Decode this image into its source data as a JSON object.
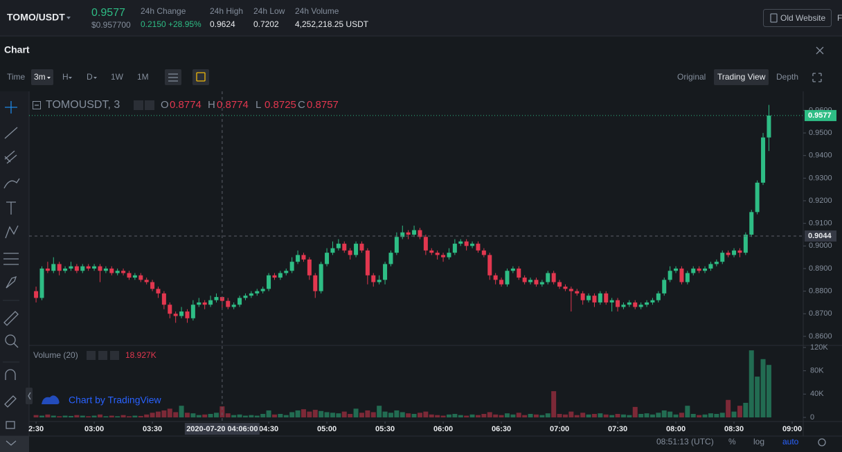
{
  "header": {
    "pair": "TOMO/USDT",
    "last_price": "0.9577",
    "last_price_usd": "$0.957700",
    "change_label": "24h Change",
    "change_value": "0.2150",
    "change_percent": "+28.95%",
    "high_label": "24h High",
    "high_value": "0.9624",
    "low_label": "24h Low",
    "low_value": "0.7202",
    "volume_label": "24h Volume",
    "volume_value": "4,252,218.25 USDT",
    "old_website": "Old Website",
    "cut_off": "F"
  },
  "panel": {
    "title": "Chart",
    "time_label": "Time",
    "intervals": [
      "3m",
      "H",
      "D",
      "1W",
      "1M"
    ],
    "views": [
      "Original",
      "Trading View",
      "Depth"
    ]
  },
  "footer": {
    "clock": "08:51:13 (UTC)",
    "percent": "%",
    "log": "log",
    "auto": "auto"
  },
  "chart_data": {
    "type": "candlestick",
    "symbol": "TOMOUSDT, 3",
    "ohlc_labels": [
      "O",
      "H",
      "L",
      "C"
    ],
    "up_color": "#2ebd85",
    "down_color": "#e2374f",
    "watermark": "Chart by TradingView",
    "candles": [
      [
        0.88,
        0.882,
        0.875,
        0.877
      ],
      [
        0.877,
        0.891,
        0.876,
        0.89
      ],
      [
        0.89,
        0.893,
        0.888,
        0.889
      ],
      [
        0.889,
        0.895,
        0.888,
        0.892
      ],
      [
        0.892,
        0.893,
        0.887,
        0.889
      ],
      [
        0.889,
        0.891,
        0.888,
        0.89
      ],
      [
        0.89,
        0.893,
        0.889,
        0.891
      ],
      [
        0.891,
        0.892,
        0.888,
        0.889
      ],
      [
        0.889,
        0.892,
        0.888,
        0.891
      ],
      [
        0.891,
        0.892,
        0.889,
        0.89
      ],
      [
        0.89,
        0.892,
        0.889,
        0.891
      ],
      [
        0.891,
        0.892,
        0.884,
        0.889
      ],
      [
        0.889,
        0.891,
        0.888,
        0.89
      ],
      [
        0.89,
        0.891,
        0.887,
        0.888
      ],
      [
        0.888,
        0.89,
        0.887,
        0.889
      ],
      [
        0.889,
        0.89,
        0.887,
        0.888
      ],
      [
        0.888,
        0.889,
        0.885,
        0.886
      ],
      [
        0.886,
        0.888,
        0.885,
        0.887
      ],
      [
        0.887,
        0.888,
        0.884,
        0.885
      ],
      [
        0.885,
        0.886,
        0.883,
        0.884
      ],
      [
        0.884,
        0.885,
        0.88,
        0.881
      ],
      [
        0.881,
        0.882,
        0.877,
        0.879
      ],
      [
        0.879,
        0.88,
        0.872,
        0.874
      ],
      [
        0.874,
        0.875,
        0.868,
        0.87
      ],
      [
        0.87,
        0.871,
        0.866,
        0.869
      ],
      [
        0.869,
        0.873,
        0.868,
        0.871
      ],
      [
        0.871,
        0.872,
        0.866,
        0.868
      ],
      [
        0.868,
        0.876,
        0.867,
        0.874
      ],
      [
        0.874,
        0.877,
        0.873,
        0.875
      ],
      [
        0.875,
        0.876,
        0.872,
        0.874
      ],
      [
        0.874,
        0.878,
        0.873,
        0.876
      ],
      [
        0.876,
        0.879,
        0.875,
        0.8774
      ],
      [
        0.8774,
        0.8774,
        0.8725,
        0.8757
      ],
      [
        0.8757,
        0.877,
        0.872,
        0.873
      ],
      [
        0.873,
        0.875,
        0.872,
        0.874
      ],
      [
        0.874,
        0.878,
        0.873,
        0.877
      ],
      [
        0.877,
        0.879,
        0.876,
        0.878
      ],
      [
        0.878,
        0.88,
        0.877,
        0.879
      ],
      [
        0.879,
        0.881,
        0.878,
        0.88
      ],
      [
        0.88,
        0.882,
        0.879,
        0.881
      ],
      [
        0.881,
        0.888,
        0.88,
        0.887
      ],
      [
        0.887,
        0.888,
        0.885,
        0.886
      ],
      [
        0.886,
        0.889,
        0.885,
        0.888
      ],
      [
        0.888,
        0.89,
        0.887,
        0.889
      ],
      [
        0.889,
        0.895,
        0.888,
        0.893
      ],
      [
        0.893,
        0.898,
        0.892,
        0.896
      ],
      [
        0.896,
        0.897,
        0.893,
        0.894
      ],
      [
        0.894,
        0.895,
        0.885,
        0.887
      ],
      [
        0.887,
        0.888,
        0.877,
        0.88
      ],
      [
        0.88,
        0.893,
        0.879,
        0.892
      ],
      [
        0.892,
        0.899,
        0.891,
        0.897
      ],
      [
        0.897,
        0.902,
        0.896,
        0.899
      ],
      [
        0.899,
        0.903,
        0.898,
        0.901
      ],
      [
        0.901,
        0.902,
        0.897,
        0.898
      ],
      [
        0.898,
        0.899,
        0.894,
        0.896
      ],
      [
        0.896,
        0.902,
        0.895,
        0.901
      ],
      [
        0.901,
        0.902,
        0.897,
        0.898
      ],
      [
        0.898,
        0.899,
        0.883,
        0.887
      ],
      [
        0.887,
        0.888,
        0.882,
        0.884
      ],
      [
        0.884,
        0.887,
        0.883,
        0.885
      ],
      [
        0.885,
        0.893,
        0.883,
        0.892
      ],
      [
        0.892,
        0.898,
        0.891,
        0.897
      ],
      [
        0.897,
        0.906,
        0.896,
        0.904
      ],
      [
        0.904,
        0.909,
        0.903,
        0.906
      ],
      [
        0.906,
        0.907,
        0.903,
        0.905
      ],
      [
        0.905,
        0.909,
        0.904,
        0.907
      ],
      [
        0.907,
        0.908,
        0.903,
        0.904
      ],
      [
        0.904,
        0.905,
        0.896,
        0.898
      ],
      [
        0.898,
        0.899,
        0.896,
        0.897
      ],
      [
        0.897,
        0.898,
        0.894,
        0.896
      ],
      [
        0.896,
        0.897,
        0.893,
        0.895
      ],
      [
        0.895,
        0.899,
        0.894,
        0.897
      ],
      [
        0.897,
        0.903,
        0.896,
        0.901
      ],
      [
        0.901,
        0.903,
        0.9,
        0.902
      ],
      [
        0.902,
        0.903,
        0.898,
        0.9
      ],
      [
        0.9,
        0.902,
        0.899,
        0.901
      ],
      [
        0.901,
        0.902,
        0.897,
        0.898
      ],
      [
        0.898,
        0.899,
        0.895,
        0.896
      ],
      [
        0.896,
        0.897,
        0.885,
        0.887
      ],
      [
        0.887,
        0.888,
        0.883,
        0.885
      ],
      [
        0.885,
        0.886,
        0.882,
        0.883
      ],
      [
        0.883,
        0.89,
        0.882,
        0.889
      ],
      [
        0.889,
        0.891,
        0.888,
        0.89
      ],
      [
        0.89,
        0.891,
        0.885,
        0.886
      ],
      [
        0.886,
        0.887,
        0.883,
        0.884
      ],
      [
        0.884,
        0.886,
        0.883,
        0.885
      ],
      [
        0.885,
        0.886,
        0.882,
        0.883
      ],
      [
        0.883,
        0.885,
        0.882,
        0.884
      ],
      [
        0.884,
        0.889,
        0.883,
        0.888
      ],
      [
        0.888,
        0.889,
        0.883,
        0.884
      ],
      [
        0.884,
        0.885,
        0.881,
        0.882
      ],
      [
        0.882,
        0.883,
        0.88,
        0.881
      ],
      [
        0.881,
        0.882,
        0.871,
        0.88
      ],
      [
        0.88,
        0.881,
        0.878,
        0.879
      ],
      [
        0.879,
        0.88,
        0.874,
        0.876
      ],
      [
        0.876,
        0.879,
        0.875,
        0.878
      ],
      [
        0.878,
        0.879,
        0.873,
        0.875
      ],
      [
        0.875,
        0.88,
        0.874,
        0.879
      ],
      [
        0.879,
        0.88,
        0.874,
        0.875
      ],
      [
        0.875,
        0.877,
        0.871,
        0.876
      ],
      [
        0.876,
        0.877,
        0.871,
        0.873
      ],
      [
        0.873,
        0.875,
        0.872,
        0.874
      ],
      [
        0.874,
        0.876,
        0.873,
        0.875
      ],
      [
        0.875,
        0.876,
        0.872,
        0.873
      ],
      [
        0.873,
        0.875,
        0.872,
        0.874
      ],
      [
        0.874,
        0.876,
        0.873,
        0.875
      ],
      [
        0.875,
        0.877,
        0.874,
        0.876
      ],
      [
        0.876,
        0.88,
        0.875,
        0.879
      ],
      [
        0.879,
        0.886,
        0.878,
        0.885
      ],
      [
        0.885,
        0.891,
        0.884,
        0.889
      ],
      [
        0.889,
        0.891,
        0.888,
        0.89
      ],
      [
        0.89,
        0.891,
        0.883,
        0.884
      ],
      [
        0.884,
        0.889,
        0.883,
        0.888
      ],
      [
        0.888,
        0.891,
        0.887,
        0.89
      ],
      [
        0.89,
        0.891,
        0.888,
        0.889
      ],
      [
        0.889,
        0.891,
        0.888,
        0.89
      ],
      [
        0.89,
        0.893,
        0.889,
        0.892
      ],
      [
        0.892,
        0.894,
        0.891,
        0.893
      ],
      [
        0.893,
        0.898,
        0.892,
        0.897
      ],
      [
        0.897,
        0.898,
        0.895,
        0.896
      ],
      [
        0.896,
        0.899,
        0.895,
        0.898
      ],
      [
        0.898,
        0.899,
        0.895,
        0.897
      ],
      [
        0.897,
        0.906,
        0.896,
        0.905
      ],
      [
        0.905,
        0.916,
        0.904,
        0.915
      ],
      [
        0.915,
        0.929,
        0.914,
        0.928
      ],
      [
        0.928,
        0.95,
        0.927,
        0.948
      ],
      [
        0.948,
        0.9624,
        0.942,
        0.9577
      ]
    ],
    "xlim": [
      -1.2,
      131.9
    ],
    "xticks": [
      {
        "value": 0,
        "label": "2:30"
      },
      {
        "value": 10,
        "label": "03:00"
      },
      {
        "value": 20,
        "label": "03:30"
      },
      {
        "value": 40,
        "label": "04:30"
      },
      {
        "value": 50,
        "label": "05:00"
      },
      {
        "value": 60,
        "label": "05:30"
      },
      {
        "value": 70,
        "label": "06:00"
      },
      {
        "value": 80,
        "label": "06:30"
      },
      {
        "value": 90,
        "label": "07:00"
      },
      {
        "value": 100,
        "label": "07:30"
      },
      {
        "value": 110,
        "label": "08:00"
      },
      {
        "value": 120,
        "label": "08:30"
      },
      {
        "value": 130,
        "label": "09:00"
      }
    ],
    "ylim": [
      0.8563,
      0.9684
    ],
    "yticks": [
      {
        "value": 0.86,
        "label": "0.8600"
      },
      {
        "value": 0.87,
        "label": "0.8700"
      },
      {
        "value": 0.88,
        "label": "0.8800"
      },
      {
        "value": 0.89,
        "label": "0.8900"
      },
      {
        "value": 0.9,
        "label": "0.9000"
      },
      {
        "value": 0.91,
        "label": "0.9100"
      },
      {
        "value": 0.92,
        "label": "0.9200"
      },
      {
        "value": 0.93,
        "label": "0.9300"
      },
      {
        "value": 0.94,
        "label": "0.9400"
      },
      {
        "value": 0.95,
        "label": "0.9500"
      },
      {
        "value": 0.96,
        "label": "0.9600"
      }
    ],
    "crosshair": {
      "index": 32,
      "price": 0.9044,
      "time": "2020-07-20 04:06:00",
      "volume_label": "18.927K"
    },
    "volume": {
      "title": "Volume (20)",
      "ylim": [
        -5900,
        122300
      ],
      "yticks": [
        0,
        {
          "value": 40000,
          "label": "40K"
        },
        {
          "value": 80000,
          "label": "80K"
        },
        {
          "value": 120000,
          "label": "120K"
        }
      ],
      "values": [
        4000,
        3000,
        5000,
        3000,
        2000,
        3000,
        2500,
        4000,
        3000,
        2000,
        3000,
        5000,
        2000,
        3000,
        2000,
        4000,
        2000,
        3000,
        2500,
        5000,
        8000,
        10000,
        12000,
        15000,
        9000,
        20000,
        8000,
        7000,
        4000,
        5000,
        6000,
        8000,
        18927,
        7000,
        4000,
        5000,
        3000,
        4000,
        3000,
        6000,
        12000,
        5000,
        6000,
        4000,
        9000,
        12000,
        14000,
        10000,
        13000,
        11000,
        9000,
        8000,
        7000,
        10000,
        6000,
        15000,
        8000,
        12000,
        9000,
        20000,
        10000,
        8000,
        12000,
        9000,
        7000,
        6000,
        8000,
        10000,
        5000,
        4000,
        3000,
        5000,
        6000,
        4000,
        3000,
        5000,
        4000,
        6000,
        9000,
        5000,
        4000,
        7000,
        5000,
        8000,
        4000,
        6000,
        5000,
        4000,
        7000,
        45000,
        6000,
        5000,
        10000,
        4000,
        8000,
        5000,
        6000,
        7000,
        5000,
        4000,
        6000,
        5000,
        4000,
        18000,
        6000,
        7000,
        5000,
        8000,
        12000,
        10000,
        5000,
        8000,
        20000,
        6000,
        4000,
        5000,
        7000,
        6000,
        8000,
        30000,
        10000,
        20000,
        25000,
        115000,
        70000,
        100000,
        90000
      ]
    }
  }
}
